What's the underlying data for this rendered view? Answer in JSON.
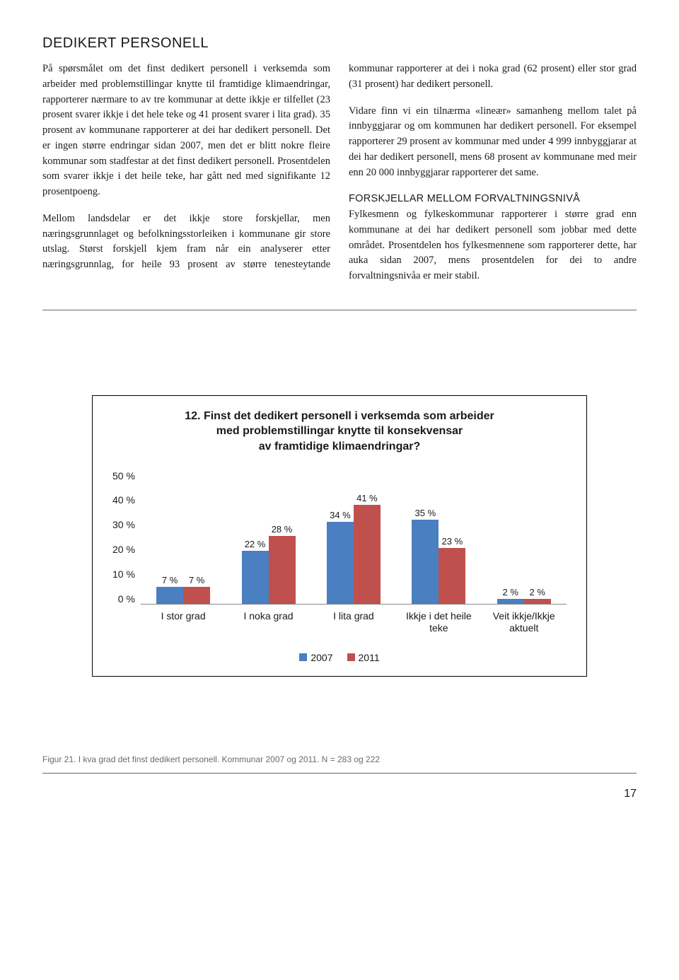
{
  "heading": "DEDIKERT PERSONELL",
  "para1": "På spørsmålet om det finst dedikert personell i verksemda som arbeider med problemstillingar knytte til framtidige klimaendringar, rapporterer nærmare to av tre kommunar at dette ikkje er tilfellet (23 prosent svarer ikkje i det hele teke og 41 prosent svarer i lita grad). 35 prosent av kommunane rapporterer at dei har dedikert personell. Det er ingen større endringar sidan 2007, men det er blitt nokre fleire kommunar som stadfestar at det finst dedikert personell. Prosentdelen som svarer ikkje i det heile teke, har gått ned med signifikante 12 prosentpoeng.",
  "para2": "Mellom landsdelar er det ikkje store forskjellar, men næringsgrunnlaget og befolkningsstorleiken i kommunane gir store utslag. Størst forskjell kjem fram når ein analyserer etter næringsgrunnlag, for heile 93 prosent av større tenesteytande kommunar rapporterer at dei i noka grad (62 prosent) eller stor grad (31 prosent) har dedikert personell.",
  "para3": "Vidare finn vi ein tilnærma «lineær» samanheng mellom talet på innbyggjarar og om kommunen har dedikert personell. For eksempel rapporterer 29 prosent av kommunar med under 4 999 innbyggjarar at dei har dedikert personell, mens 68 prosent av kommunane med meir enn 20 000 innbyggjarar rapporterer det same.",
  "subhead": "FORSKJELLAR MELLOM FORVALTNINGSNIVÅ",
  "para4": "Fylkesmenn og fylkeskommunar rapporterer i større grad enn kommunane at dei har dedikert personell som jobbar med dette området. Prosentdelen hos fylkesmennene som rapporterer dette, har auka sidan 2007, mens prosentdelen for dei to andre forvaltningsnivåa er meir stabil.",
  "chart": {
    "title_l1": "12. Finst det dedikert personell i verksemda som arbeider",
    "title_l2": "med problemstillingar knytte til konsekvensar",
    "title_l3": "av framtidige klimaendringar?",
    "ymax": 50,
    "yticks": [
      "50 %",
      "40 %",
      "30 %",
      "20 %",
      "10 %",
      "0 %"
    ],
    "categories": [
      "I stor grad",
      "I noka grad",
      "I lita grad",
      "Ikkje i det heile teke",
      "Veit ikkje/Ikkje aktuelt"
    ],
    "series": [
      {
        "name": "2007",
        "color": "#4a7fc1",
        "values": [
          7,
          22,
          34,
          35,
          2
        ],
        "labels": [
          "7 %",
          "22 %",
          "34 %",
          "35 %",
          "2 %"
        ]
      },
      {
        "name": "2011",
        "color": "#c0504d",
        "values": [
          7,
          28,
          41,
          23,
          2
        ],
        "labels": [
          "7 %",
          "28 %",
          "41 %",
          "23 %",
          "2 %"
        ]
      }
    ],
    "label_fontsize": 13,
    "title_fontsize": 16,
    "axis_fontsize": 14
  },
  "caption": "Figur 21. I kva grad det finst dedikert personell. Kommunar 2007 og 2011. N = 283 og 222",
  "page_number": "17",
  "heading_fontsize": 20,
  "body_fontsize": 14.5,
  "caption_fontsize": 12
}
